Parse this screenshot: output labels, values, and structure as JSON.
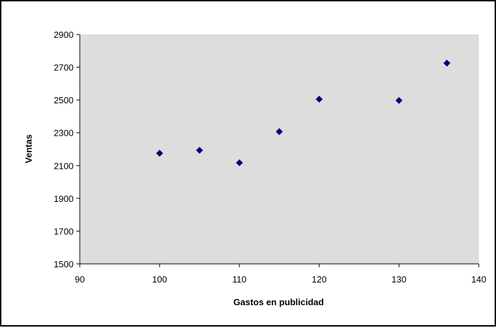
{
  "chart_data": {
    "type": "scatter",
    "title": "",
    "xlabel": "Gastos en publicidad",
    "ylabel": "Ventas",
    "xlim": [
      90,
      140
    ],
    "ylim": [
      1500,
      2900
    ],
    "x_ticks": [
      90,
      100,
      110,
      120,
      130,
      140
    ],
    "y_ticks": [
      1500,
      1700,
      1900,
      2100,
      2300,
      2500,
      2700,
      2900
    ],
    "grid": false,
    "legend": "none",
    "series": [
      {
        "marker": "diamond",
        "color": "#000080",
        "points": [
          {
            "x": 100,
            "y": 2175
          },
          {
            "x": 105,
            "y": 2193
          },
          {
            "x": 110,
            "y": 2117
          },
          {
            "x": 115,
            "y": 2307
          },
          {
            "x": 120,
            "y": 2505
          },
          {
            "x": 130,
            "y": 2497
          },
          {
            "x": 136,
            "y": 2725
          }
        ]
      }
    ],
    "colors": {
      "plot_background": "#dddddd",
      "chart_border": "#000000",
      "axis": "#000000"
    }
  }
}
